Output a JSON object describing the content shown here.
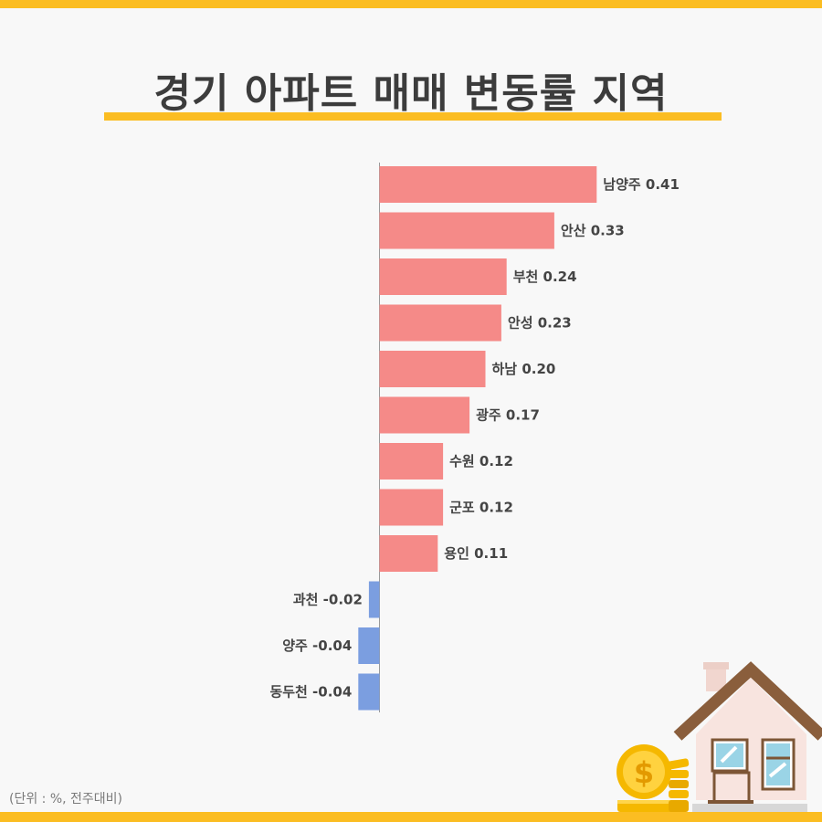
{
  "title": "경기 아파트 매매 변동률 지역",
  "unit_note": "(단위 : %, 전주대비)",
  "colors": {
    "accent": "#fbbd22",
    "positive": "#f58a88",
    "negative": "#7b9ee0",
    "background": "#f8f8f8"
  },
  "chart_data": {
    "type": "bar",
    "orientation": "horizontal",
    "categories": [
      "남양주",
      "안산",
      "부천",
      "안성",
      "하남",
      "광주",
      "수원",
      "군포",
      "용인",
      "과천",
      "양주",
      "동두천"
    ],
    "values": [
      0.41,
      0.33,
      0.24,
      0.23,
      0.2,
      0.17,
      0.12,
      0.12,
      0.11,
      -0.02,
      -0.04,
      -0.04
    ],
    "value_labels": [
      "0.41",
      "0.33",
      "0.24",
      "0.23",
      "0.20",
      "0.17",
      "0.12",
      "0.12",
      "0.11",
      "-0.02",
      "-0.04",
      "-0.04"
    ],
    "title": "경기 아파트 매매 변동률 지역",
    "unit": "%",
    "grid": false,
    "legend": "none"
  }
}
